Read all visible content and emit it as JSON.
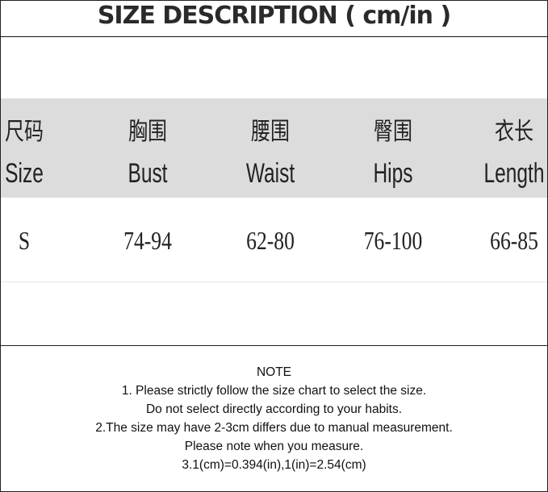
{
  "title": "SIZE DESCRIPTION ( cm/in )",
  "table": {
    "headers": [
      {
        "zh": "尺码",
        "en": "Size"
      },
      {
        "zh": "胸围",
        "en": "Bust"
      },
      {
        "zh": "腰围",
        "en": "Waist"
      },
      {
        "zh": "臀围",
        "en": "Hips"
      },
      {
        "zh": "衣长",
        "en": "Length"
      }
    ],
    "rows": [
      [
        "S",
        "74-94",
        "62-80",
        "76-100",
        "66-85"
      ]
    ]
  },
  "note": {
    "heading": "NOTE",
    "lines": [
      "1. Please strictly follow the size chart to select the size.",
      "Do not select directly according to your habits.",
      "2.The size may have 2-3cm differs due to manual measurement.",
      "Please note when you measure.",
      "3.1(cm)=0.394(in),1(in)=2.54(cm)"
    ]
  }
}
